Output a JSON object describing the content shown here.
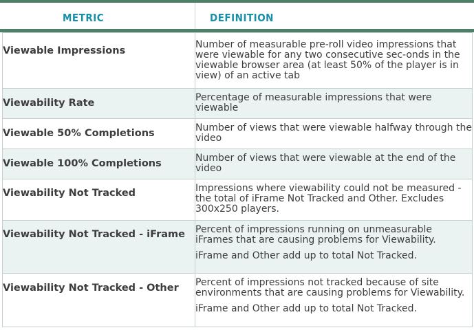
{
  "header": {
    "metric": "METRIC",
    "definition": "DEFINITION"
  },
  "rows": [
    {
      "metric": "Viewable Impressions",
      "definition": [
        "Number of measurable pre-roll video impressions that were viewable for any two consecutive sec-onds in the viewable browser area (at least 50% of the player is in view) of an active tab"
      ]
    },
    {
      "metric": "Viewability Rate",
      "definition": [
        "Percentage of measurable impressions that were viewable"
      ]
    },
    {
      "metric": "Viewable 50% Completions",
      "definition": [
        "Number of views that were viewable halfway through the video"
      ]
    },
    {
      "metric": "Viewable 100% Completions",
      "definition": [
        "Number of views that were viewable at the end of the video"
      ]
    },
    {
      "metric": "Viewability Not Tracked",
      "definition": [
        "Impressions where viewability could not be measured - the total of iFrame Not Tracked and Other. Excludes 300x250 players."
      ]
    },
    {
      "metric": "Viewability Not Tracked - iFrame",
      "definition": [
        "Percent of impressions running on unmeasurable iFrames that are causing problems for Viewability.",
        "iFrame and Other add up to total Not Tracked."
      ]
    },
    {
      "metric": "Viewability Not Tracked - Other",
      "definition": [
        "Percent of impressions not tracked because of site environments that are causing problems for Viewability.",
        "iFrame and Other add up to total Not Tracked."
      ]
    }
  ]
}
